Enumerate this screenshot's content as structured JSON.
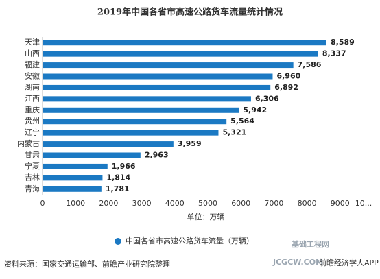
{
  "chart_data": {
    "type": "bar",
    "orientation": "horizontal",
    "title": "2019年中国各省市高速公路货车流量统计情况",
    "categories": [
      "天津",
      "山西",
      "福建",
      "安徽",
      "湖南",
      "江西",
      "重庆",
      "贵州",
      "辽宁",
      "内蒙古",
      "甘肃",
      "宁夏",
      "吉林",
      "青海"
    ],
    "series": [
      {
        "name": "中国各省市高速公路货车流量（万辆）",
        "color": "#1b79c3",
        "values": [
          8589,
          8337,
          7586,
          6960,
          6892,
          6306,
          5942,
          5564,
          5321,
          3959,
          2963,
          1966,
          1814,
          1781
        ],
        "value_labels": [
          "8,589",
          "8,337",
          "7,586",
          "6,960",
          "6,892",
          "6,306",
          "5,942",
          "5,564",
          "5,321",
          "3,959",
          "2,963",
          "1,966",
          "1,814",
          "1,781"
        ]
      }
    ],
    "xlabel": "单位：万辆",
    "xlim": [
      0,
      10000
    ],
    "xticks": [
      0,
      1000,
      2000,
      3000,
      4000,
      5000,
      6000,
      7000,
      8000,
      9000,
      {
        "value": 10000,
        "label": "10..."
      }
    ],
    "legend": "bottom",
    "source": "资料来源：国家交通运输部、前瞻产业研究院整理",
    "watermarks": [
      "基础工程网",
      "JCGCW.COM",
      "前瞻经济学人APP"
    ]
  }
}
